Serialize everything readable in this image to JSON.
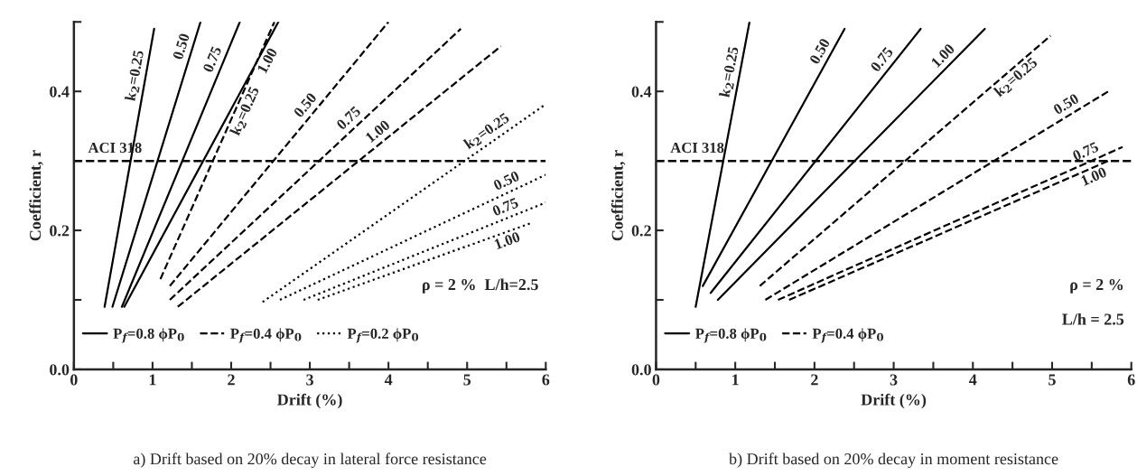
{
  "chart_data": [
    {
      "type": "line",
      "title": "a) Drift based on 20% decay in lateral force resistance",
      "xlabel": "Drift (%)",
      "ylabel": "Coefficient, r",
      "xlim": [
        0,
        6
      ],
      "ylim": [
        0,
        0.5
      ],
      "xticks": [
        0,
        {
          "value": 0.5,
          "label": null
        },
        1,
        {
          "value": 1.5,
          "label": null
        },
        2,
        {
          "value": 2.5,
          "label": null
        },
        3,
        {
          "value": 3.5,
          "label": null
        },
        4,
        {
          "value": 4.5,
          "label": null
        },
        5,
        {
          "value": 5.5,
          "label": null
        },
        6
      ],
      "yticks": [
        {
          "value": 0,
          "label": "0.0"
        },
        {
          "value": 0.1,
          "label": null
        },
        {
          "value": 0.2,
          "label": "0.2"
        },
        {
          "value": 0.3,
          "label": null
        },
        {
          "value": 0.4,
          "label": "0.4"
        },
        {
          "value": 0.5,
          "label": null
        }
      ],
      "grid": false,
      "legend": "bottom left",
      "series": [
        {
          "name": "P$_{f}$=0.8 ϕP$_{0}$",
          "color": "#000000",
          "line_style": "solid",
          "x": [
            0.39,
            1.02
          ],
          "values": [
            0.09,
            0.49
          ]
        },
        {
          "color": "#000000",
          "line_style": "solid",
          "x": [
            0.49,
            1.61
          ],
          "values": [
            0.09,
            0.5
          ]
        },
        {
          "color": "#000000",
          "line_style": "solid",
          "x": [
            0.61,
            2.11
          ],
          "values": [
            0.09,
            0.5
          ]
        },
        {
          "color": "#000000",
          "line_style": "solid",
          "x": [
            0.64,
            2.6
          ],
          "values": [
            0.09,
            0.5
          ]
        },
        {
          "name": "P$_{f}$=0.4 ϕP$_{0}$",
          "color": "#000000",
          "line_style": "dashed",
          "x": [
            1.1,
            2.55
          ],
          "values": [
            0.13,
            0.5
          ]
        },
        {
          "color": "#000000",
          "line_style": "dashed",
          "x": [
            1.22,
            4.0
          ],
          "values": [
            0.12,
            0.5
          ]
        },
        {
          "color": "#000000",
          "line_style": "dashed",
          "x": [
            1.22,
            4.92
          ],
          "values": [
            0.1,
            0.49
          ]
        },
        {
          "color": "#000000",
          "line_style": "dashed",
          "x": [
            1.32,
            5.43
          ],
          "values": [
            0.09,
            0.465
          ]
        },
        {
          "name": "P$_{f}$=0.2 ϕP$_{0}$",
          "color": "#000000",
          "line_style": "dotted",
          "x": [
            2.4,
            5.98
          ],
          "values": [
            0.097,
            0.38
          ]
        },
        {
          "color": "#000000",
          "line_style": "dotted",
          "x": [
            2.62,
            6.0
          ],
          "values": [
            0.1,
            0.28
          ]
        },
        {
          "color": "#000000",
          "line_style": "dotted",
          "x": [
            2.92,
            6.0
          ],
          "values": [
            0.1,
            0.24
          ]
        },
        {
          "color": "#000000",
          "line_style": "dotted",
          "x": [
            3.1,
            5.8
          ],
          "values": [
            0.1,
            0.21
          ]
        }
      ],
      "ref_lines": [
        {
          "axis": "y",
          "value": 0.3,
          "label": "ACI 318",
          "color": "#000000",
          "line_style": "dashed"
        }
      ],
      "annotations": [
        {
          "text": "k$_{2}$=0.25",
          "x": 0.91,
          "y": 0.42
        },
        {
          "text": "0.50",
          "x": 1.5,
          "y": 0.46
        },
        {
          "text": "0.75",
          "x": 1.89,
          "y": 0.44
        },
        {
          "text": "1.00",
          "x": 2.36,
          "y": 0.45
        },
        {
          "text": "k$_{2}$=0.25",
          "x": 2.07,
          "y": 0.377
        },
        {
          "text": "0.50",
          "x": 3.05,
          "y": 0.37
        },
        {
          "text": "0.75",
          "x": 3.59,
          "y": 0.35
        },
        {
          "text": "1.00",
          "x": 3.95,
          "y": 0.33
        },
        {
          "text": "k$_{2}$=0.25",
          "x": 5.33,
          "y": 0.33
        },
        {
          "text": "0.50",
          "x": 5.56,
          "y": 0.257
        },
        {
          "text": "0.75",
          "x": 5.54,
          "y": 0.219
        },
        {
          "text": "1.00",
          "x": 5.47,
          "y": 0.197
        },
        "ρ = 2 %  L/h=2.5"
      ]
    },
    {
      "type": "line",
      "title": "b) Drift based on 20% decay in moment resistance",
      "xlabel": "Drift (%)",
      "ylabel": "Coefficient, r",
      "xlim": [
        0,
        6
      ],
      "ylim": [
        0,
        0.5
      ],
      "xticks": [
        0,
        {
          "value": 0.5,
          "label": null
        },
        1,
        {
          "value": 1.5,
          "label": null
        },
        2,
        {
          "value": 2.5,
          "label": null
        },
        3,
        {
          "value": 3.5,
          "label": null
        },
        4,
        {
          "value": 4.5,
          "label": null
        },
        5,
        {
          "value": 5.5,
          "label": null
        },
        6
      ],
      "yticks": [
        {
          "value": 0,
          "label": "0.0"
        },
        {
          "value": 0.1,
          "label": null
        },
        {
          "value": 0.2,
          "label": "0.2"
        },
        {
          "value": 0.3,
          "label": null
        },
        {
          "value": 0.4,
          "label": "0.4"
        },
        {
          "value": 0.5,
          "label": null
        }
      ],
      "grid": false,
      "legend": "bottom left",
      "series": [
        {
          "name": "P$_{f}$=0.8 ϕP$_{0}$",
          "color": "#000000",
          "line_style": "solid",
          "x": [
            0.5,
            1.18
          ],
          "values": [
            0.09,
            0.5
          ]
        },
        {
          "color": "#000000",
          "line_style": "solid",
          "x": [
            0.59,
            2.38
          ],
          "values": [
            0.12,
            0.49
          ]
        },
        {
          "color": "#000000",
          "line_style": "solid",
          "x": [
            0.69,
            3.34
          ],
          "values": [
            0.11,
            0.49
          ]
        },
        {
          "color": "#000000",
          "line_style": "solid",
          "x": [
            0.78,
            4.15
          ],
          "values": [
            0.1,
            0.49
          ]
        },
        {
          "name": "P$_{f}$=0.4 ϕP$_{0}$",
          "color": "#000000",
          "line_style": "dashed",
          "x": [
            1.31,
            4.98
          ],
          "values": [
            0.12,
            0.48
          ]
        },
        {
          "color": "#000000",
          "line_style": "dashed",
          "x": [
            1.38,
            5.71
          ],
          "values": [
            0.1,
            0.4
          ]
        },
        {
          "color": "#000000",
          "line_style": "dashed",
          "x": [
            1.54,
            5.89
          ],
          "values": [
            0.1,
            0.32
          ]
        },
        {
          "color": "#000000",
          "line_style": "dashed",
          "x": [
            1.68,
            5.71
          ],
          "values": [
            0.1,
            0.3
          ]
        }
      ],
      "ref_lines": [
        {
          "axis": "y",
          "value": 0.3,
          "label": "ACI 318",
          "color": "#000000",
          "line_style": "dashed"
        }
      ],
      "annotations": [
        {
          "text": "k$_{2}$=0.25",
          "x": 1.06,
          "y": 0.425
        },
        {
          "text": "0.50",
          "x": 2.19,
          "y": 0.45
        },
        {
          "text": "0.75",
          "x": 2.96,
          "y": 0.436
        },
        {
          "text": "1.00",
          "x": 3.72,
          "y": 0.44
        },
        {
          "text": "k$_{2}$=0.25",
          "x": 4.47,
          "y": 0.43
        },
        {
          "text": "0.50",
          "x": 5.25,
          "y": 0.368
        },
        {
          "text": "0.75",
          "x": 5.48,
          "y": 0.299
        },
        {
          "text": "1.00",
          "x": 5.48,
          "y": 0.289
        },
        "ρ = 2 %",
        "L/h = 2.5"
      ]
    }
  ]
}
